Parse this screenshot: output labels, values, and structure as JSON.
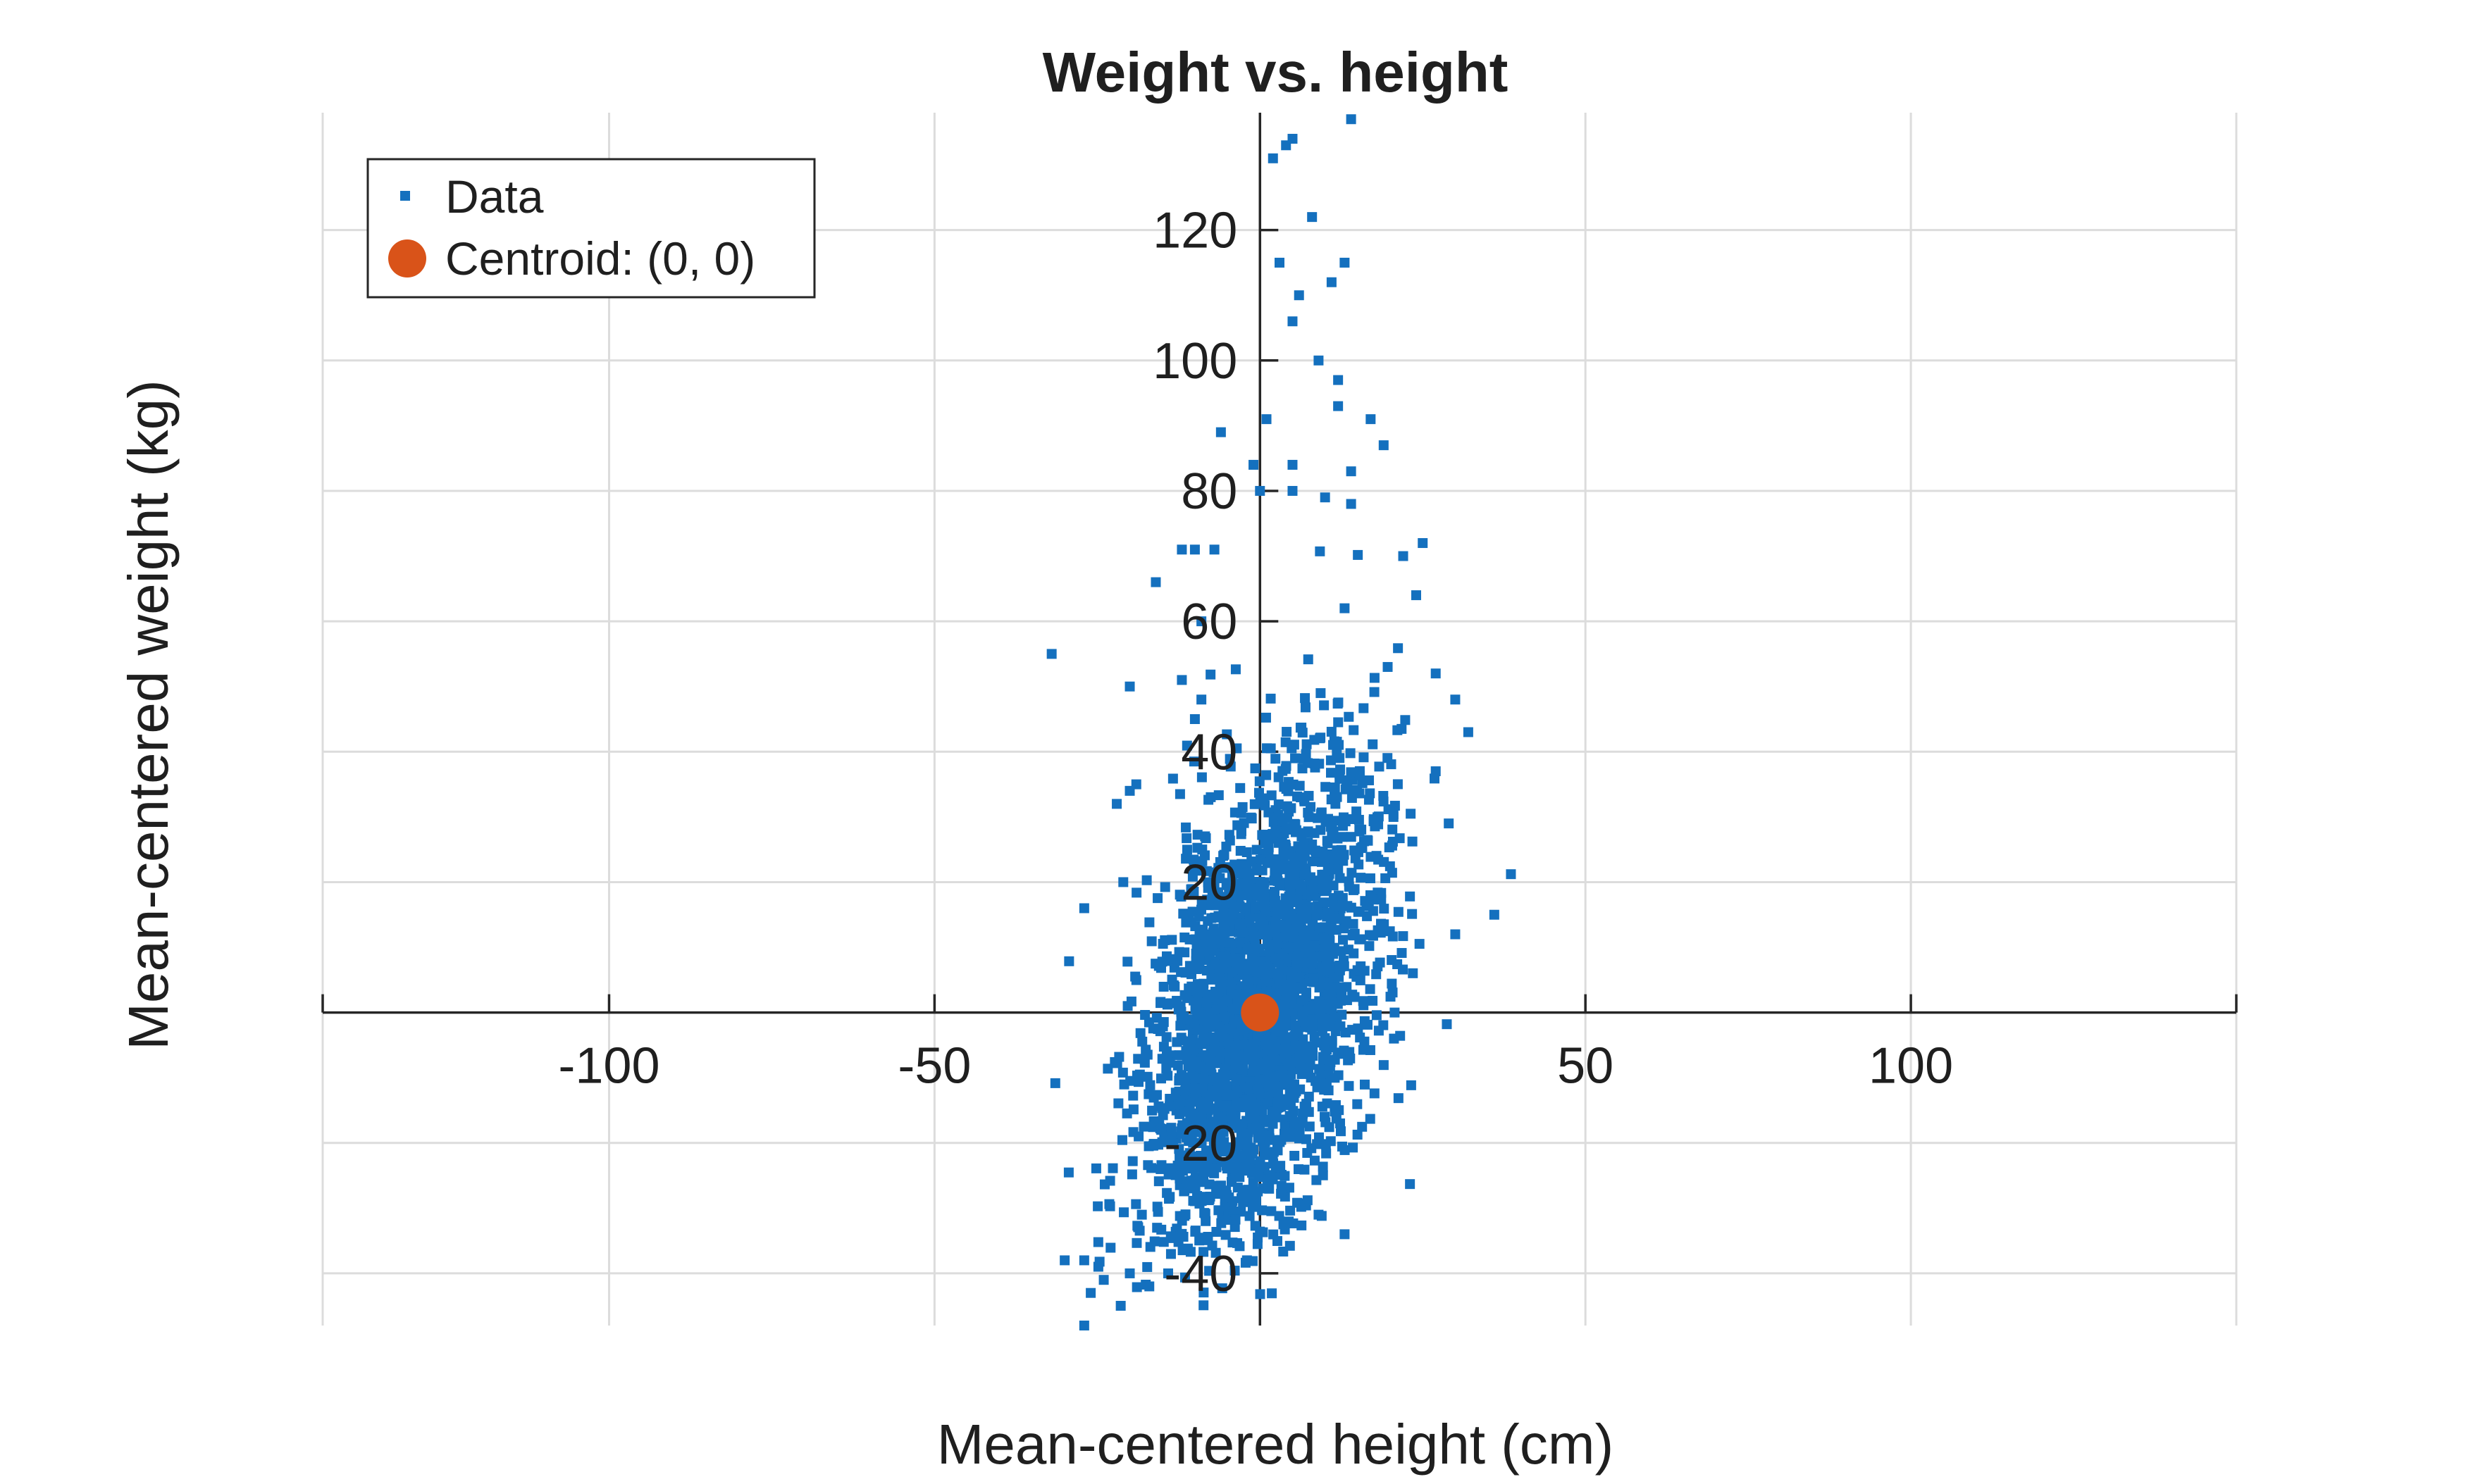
{
  "chart_data": {
    "type": "scatter",
    "title": "Weight vs. height",
    "xlabel": "Mean-centered height (cm)",
    "ylabel": "Mean-centered weight (kg)",
    "xlim": [
      -144,
      150
    ],
    "ylim": [
      -48,
      138
    ],
    "xticks": [
      -100,
      -50,
      50,
      100
    ],
    "xtick_labels": [
      "-100",
      "-50",
      "50",
      "100"
    ],
    "yticks": [
      -40,
      -20,
      20,
      40,
      60,
      80,
      100,
      120
    ],
    "ytick_labels": [
      "-40",
      "-20",
      "20",
      "40",
      "60",
      "80",
      "100",
      "120"
    ],
    "grid": true,
    "axis_location": "origin",
    "legend_position": "top-left",
    "series": [
      {
        "name": "Data",
        "color": "#1470be",
        "marker": "square",
        "point_count_estimate": 5000,
        "distribution": {
          "x_mean": 0,
          "y_mean": 0,
          "x_sd": 9,
          "y_sd": 17,
          "correlation": 0.45
        },
        "points": [
          [
            -32,
            55
          ],
          [
            2,
            131
          ],
          [
            4,
            133
          ],
          [
            5,
            134
          ],
          [
            14,
            137
          ],
          [
            8,
            122
          ],
          [
            3,
            115
          ],
          [
            11,
            112
          ],
          [
            5,
            106
          ],
          [
            6,
            110
          ],
          [
            13,
            115
          ],
          [
            9,
            100
          ],
          [
            12,
            97
          ],
          [
            -6,
            89
          ],
          [
            1,
            91
          ],
          [
            17,
            91
          ],
          [
            19,
            87
          ],
          [
            12,
            93
          ],
          [
            -1,
            84
          ],
          [
            5,
            84
          ],
          [
            14,
            83
          ],
          [
            0,
            80
          ],
          [
            5,
            80
          ],
          [
            10,
            79
          ],
          [
            14,
            78
          ],
          [
            -12,
            71
          ],
          [
            -10,
            71
          ],
          [
            -7,
            71
          ],
          [
            -16,
            66
          ],
          [
            22,
            70
          ],
          [
            25,
            72
          ],
          [
            -9,
            60
          ],
          [
            24,
            64
          ],
          [
            13,
            62
          ],
          [
            -20,
            50
          ],
          [
            27,
            52
          ],
          [
            -12,
            51
          ],
          [
            -9,
            48
          ],
          [
            30,
            48
          ],
          [
            -10,
            45
          ],
          [
            32,
            43
          ],
          [
            -19,
            35
          ],
          [
            -20,
            34
          ],
          [
            -22,
            32
          ],
          [
            27,
            37
          ],
          [
            29,
            29
          ],
          [
            -27,
            16
          ],
          [
            36,
            15
          ],
          [
            -21,
            20
          ],
          [
            30,
            12
          ],
          [
            -27,
            -38
          ],
          [
            -30,
            -38
          ],
          [
            -24,
            -41
          ],
          [
            -26,
            -43
          ],
          [
            -17,
            -42
          ],
          [
            -2,
            -38
          ],
          [
            13,
            -34
          ],
          [
            -27,
            -48
          ],
          [
            -20,
            -40
          ],
          [
            9,
            -31
          ]
        ]
      },
      {
        "name": "Centroid: (0, 0)",
        "color": "#d95319",
        "marker": "circle",
        "points": [
          [
            0,
            0
          ]
        ]
      }
    ]
  }
}
